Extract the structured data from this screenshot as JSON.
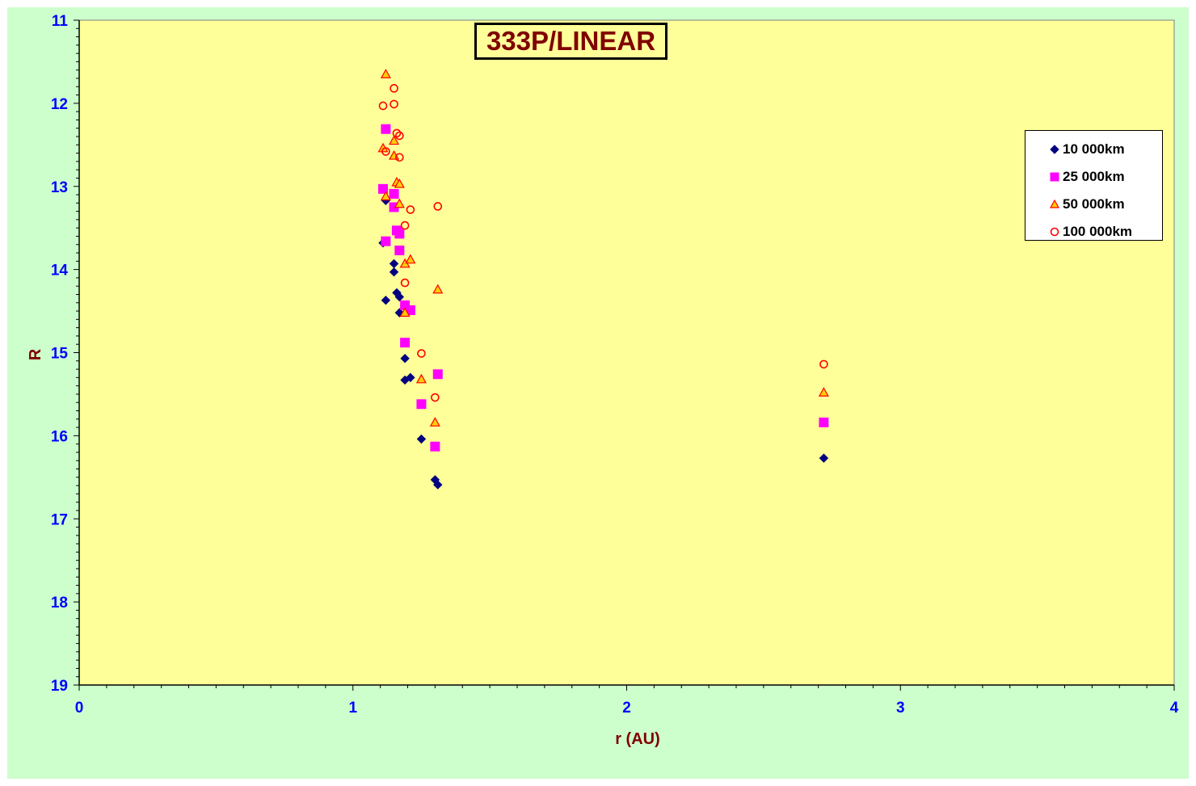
{
  "chart_data": {
    "type": "scatter",
    "title": "333P/LINEAR",
    "xlabel": "r (AU)",
    "ylabel": "R",
    "xlim": [
      0,
      4
    ],
    "ylim": [
      11,
      19
    ],
    "y_inverted": true,
    "x_ticks": [
      "0",
      "1",
      "2",
      "3",
      "4"
    ],
    "y_ticks": [
      "11",
      "12",
      "13",
      "14",
      "15",
      "16",
      "17",
      "18",
      "19"
    ],
    "plot_background": "#ffff99",
    "chart_background": "#ccffcc",
    "legend_position": "right",
    "grid": false,
    "series": [
      {
        "name": "10 000km",
        "marker": "diamond",
        "color": "#000080",
        "points": [
          [
            1.11,
            13.68
          ],
          [
            1.12,
            13.17
          ],
          [
            1.12,
            14.37
          ],
          [
            1.15,
            13.93
          ],
          [
            1.15,
            14.03
          ],
          [
            1.16,
            14.28
          ],
          [
            1.17,
            14.33
          ],
          [
            1.17,
            14.52
          ],
          [
            1.19,
            15.07
          ],
          [
            1.19,
            15.33
          ],
          [
            1.21,
            15.3
          ],
          [
            1.25,
            16.04
          ],
          [
            1.3,
            16.53
          ],
          [
            1.31,
            16.59
          ],
          [
            2.72,
            16.27
          ]
        ]
      },
      {
        "name": "25 000km",
        "marker": "square",
        "color": "#ff00ff",
        "points": [
          [
            1.11,
            13.03
          ],
          [
            1.12,
            12.31
          ],
          [
            1.12,
            13.66
          ],
          [
            1.15,
            13.09
          ],
          [
            1.15,
            13.25
          ],
          [
            1.16,
            13.53
          ],
          [
            1.17,
            13.57
          ],
          [
            1.17,
            13.77
          ],
          [
            1.19,
            14.43
          ],
          [
            1.19,
            14.88
          ],
          [
            1.21,
            14.49
          ],
          [
            1.25,
            15.62
          ],
          [
            1.3,
            16.13
          ],
          [
            1.31,
            15.26
          ],
          [
            2.72,
            15.84
          ]
        ]
      },
      {
        "name": "50 000km",
        "marker": "triangle",
        "color": "#ffcc00",
        "stroke": "#ff0000",
        "points": [
          [
            1.11,
            12.54
          ],
          [
            1.12,
            11.65
          ],
          [
            1.12,
            13.12
          ],
          [
            1.15,
            12.45
          ],
          [
            1.15,
            12.63
          ],
          [
            1.16,
            12.95
          ],
          [
            1.17,
            12.97
          ],
          [
            1.17,
            13.21
          ],
          [
            1.19,
            13.93
          ],
          [
            1.19,
            14.52
          ],
          [
            1.21,
            13.88
          ],
          [
            1.25,
            15.32
          ],
          [
            1.3,
            15.84
          ],
          [
            1.31,
            14.24
          ],
          [
            2.72,
            15.48
          ]
        ]
      },
      {
        "name": "100 000km",
        "marker": "circle",
        "color": "#ff0000",
        "points": [
          [
            1.11,
            12.03
          ],
          [
            1.12,
            12.58
          ],
          [
            1.15,
            11.82
          ],
          [
            1.15,
            12.01
          ],
          [
            1.16,
            12.36
          ],
          [
            1.17,
            12.39
          ],
          [
            1.17,
            12.65
          ],
          [
            1.19,
            13.47
          ],
          [
            1.19,
            14.16
          ],
          [
            1.21,
            13.28
          ],
          [
            1.25,
            15.01
          ],
          [
            1.3,
            15.54
          ],
          [
            1.31,
            13.24
          ],
          [
            2.72,
            15.14
          ]
        ]
      }
    ]
  }
}
